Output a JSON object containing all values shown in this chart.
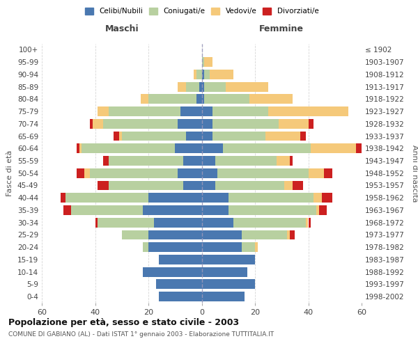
{
  "age_groups": [
    "0-4",
    "5-9",
    "10-14",
    "15-19",
    "20-24",
    "25-29",
    "30-34",
    "35-39",
    "40-44",
    "45-49",
    "50-54",
    "55-59",
    "60-64",
    "65-69",
    "70-74",
    "75-79",
    "80-84",
    "85-89",
    "90-94",
    "95-99",
    "100+"
  ],
  "birth_years": [
    "1998-2002",
    "1993-1997",
    "1988-1992",
    "1983-1987",
    "1978-1982",
    "1973-1977",
    "1968-1972",
    "1963-1967",
    "1958-1962",
    "1953-1957",
    "1948-1952",
    "1943-1947",
    "1938-1942",
    "1933-1937",
    "1928-1932",
    "1923-1927",
    "1918-1922",
    "1913-1917",
    "1908-1912",
    "1903-1907",
    "≤ 1902"
  ],
  "maschi": {
    "celibi": [
      16,
      17,
      22,
      16,
      20,
      20,
      18,
      22,
      20,
      7,
      9,
      7,
      10,
      6,
      9,
      8,
      2,
      1,
      0,
      0,
      0
    ],
    "coniugati": [
      0,
      0,
      0,
      0,
      2,
      10,
      21,
      27,
      31,
      28,
      33,
      28,
      35,
      24,
      28,
      27,
      18,
      5,
      2,
      0,
      0
    ],
    "vedovi": [
      0,
      0,
      0,
      0,
      0,
      0,
      0,
      0,
      0,
      0,
      2,
      0,
      1,
      1,
      4,
      4,
      3,
      3,
      1,
      0,
      0
    ],
    "divorziati": [
      0,
      0,
      0,
      0,
      0,
      0,
      1,
      3,
      2,
      4,
      3,
      2,
      1,
      2,
      1,
      0,
      0,
      0,
      0,
      0,
      0
    ]
  },
  "femmine": {
    "nubili": [
      16,
      20,
      17,
      20,
      15,
      15,
      12,
      10,
      10,
      5,
      6,
      5,
      8,
      4,
      4,
      4,
      1,
      1,
      1,
      0,
      0
    ],
    "coniugate": [
      0,
      0,
      0,
      0,
      5,
      17,
      27,
      33,
      32,
      26,
      34,
      23,
      33,
      20,
      25,
      21,
      17,
      8,
      2,
      1,
      0
    ],
    "vedove": [
      0,
      0,
      0,
      0,
      1,
      1,
      1,
      1,
      3,
      3,
      6,
      5,
      17,
      13,
      11,
      30,
      16,
      16,
      9,
      3,
      0
    ],
    "divorziate": [
      0,
      0,
      0,
      0,
      0,
      2,
      1,
      3,
      4,
      4,
      3,
      1,
      3,
      2,
      2,
      0,
      0,
      0,
      0,
      0,
      0
    ]
  },
  "colors": {
    "celibi": "#4a78b0",
    "coniugati": "#b8d0a0",
    "vedovi": "#f5c97a",
    "divorziati": "#cc2020"
  },
  "title_main": "Popolazione per età, sesso e stato civile - 2003",
  "title_sub": "COMUNE DI GABIANO (AL) - Dati ISTAT 1° gennaio 2003 - Elaborazione TUTTITALIA.IT",
  "xlabel_left": "Maschi",
  "xlabel_right": "Femmine",
  "ylabel_left": "Fasce di età",
  "ylabel_right": "Anni di nascita",
  "legend_labels": [
    "Celibi/Nubili",
    "Coniugati/e",
    "Vedovi/e",
    "Divorziati/e"
  ],
  "xlim": 60,
  "background_color": "#ffffff",
  "grid_color": "#cccccc"
}
